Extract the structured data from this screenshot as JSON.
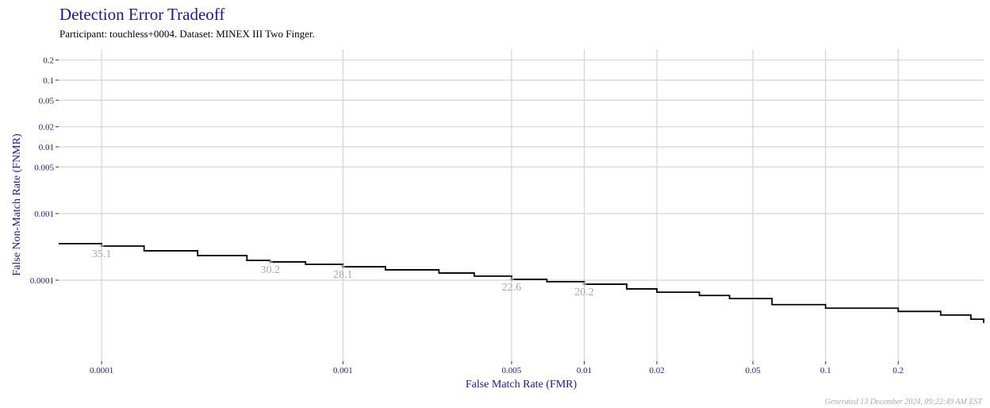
{
  "chart_data": {
    "type": "line",
    "title": "Detection Error Tradeoff",
    "subtitle": "Participant: touchless+0004. Dataset: MINEX III Two Finger.",
    "x_label": "False Match Rate (FMR)",
    "y_label": "False Non-Match Rate (FNMR)",
    "footer": "Generated 13 December 2024, 09:22:49 AM EST",
    "log_x": true,
    "log_y": true,
    "grid": true,
    "xlim": [
      6.64e-05,
      0.452
    ],
    "ylim": [
      6.1e-06,
      0.291
    ],
    "xticks": [
      0.0001,
      0.001,
      0.005,
      0.01,
      0.02,
      0.05,
      0.1,
      0.2
    ],
    "yticks": [
      0.0001,
      0.001,
      0.005,
      0.01,
      0.02,
      0.05,
      0.1,
      0.2
    ],
    "series": [
      {
        "name": "touchless+0004",
        "color": "#000000",
        "x": [
          6.64e-05,
          0.0001,
          0.00015,
          0.00025,
          0.0004,
          0.0005,
          0.0007,
          0.001,
          0.0015,
          0.0025,
          0.0035,
          0.005,
          0.007,
          0.01,
          0.015,
          0.02,
          0.03,
          0.04,
          0.06,
          0.1,
          0.15,
          0.2,
          0.3,
          0.4,
          0.452
        ],
        "values": [
          0.000353,
          0.000325,
          0.000276,
          0.000234,
          0.000198,
          0.000188,
          0.000173,
          0.000159,
          0.000143,
          0.000128,
          0.000115,
          0.000103,
          9.5e-05,
          8.7e-05,
          7.4e-05,
          6.6e-05,
          5.9e-05,
          5.3e-05,
          4.3e-05,
          3.8e-05,
          3.8e-05,
          3.4e-05,
          3e-05,
          2.6e-05,
          2.28e-05
        ]
      }
    ],
    "annotations": [
      {
        "x": 0.0001,
        "y": 0.000325,
        "label": "35.1"
      },
      {
        "x": 0.0005,
        "y": 0.000188,
        "label": "30.2"
      },
      {
        "x": 0.001,
        "y": 0.000159,
        "label": "28.1"
      },
      {
        "x": 0.005,
        "y": 0.000103,
        "label": "22.6"
      },
      {
        "x": 0.01,
        "y": 8.7e-05,
        "label": "20.2"
      }
    ]
  }
}
